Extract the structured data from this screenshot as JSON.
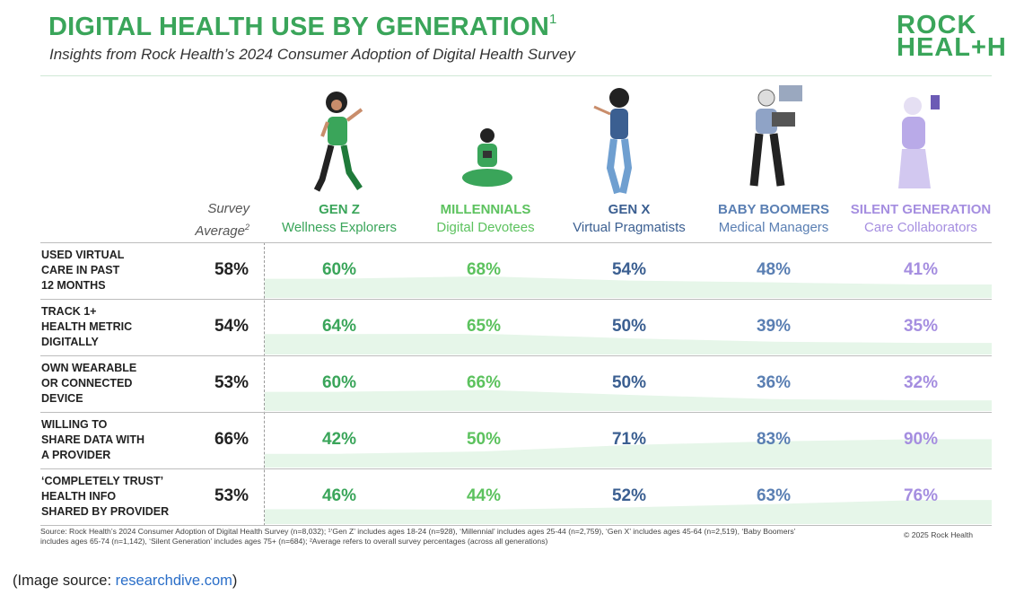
{
  "header": {
    "title": "DIGITAL HEALTH USE BY GENERATION",
    "title_sup": "1",
    "subtitle": "Insights from Rock Health’s 2024 Consumer Adoption of Digital Health Survey",
    "logo_line1": "ROCK",
    "logo_line2": "HEAL+H"
  },
  "columns": {
    "survey_label_1": "Survey",
    "survey_label_2": "Average",
    "survey_sup": "2"
  },
  "chart_data": {
    "type": "table",
    "columns": [
      {
        "name": "GEN Z",
        "descriptor": "Wellness Explorers",
        "color": "#3aa55a"
      },
      {
        "name": "MILLENNIALS",
        "descriptor": "Digital Devotees",
        "color": "#5cc25e"
      },
      {
        "name": "GEN X",
        "descriptor": "Virtual Pragmatists",
        "color": "#3b5f91"
      },
      {
        "name": "BABY BOOMERS",
        "descriptor": "Medical Managers",
        "color": "#5a7fb3"
      },
      {
        "name": "SILENT GENERATION",
        "descriptor": "Care Collaborators",
        "color": "#a58ee0"
      }
    ],
    "rows": [
      {
        "label_lines": [
          "USED VIRTUAL",
          "CARE IN PAST",
          "12 MONTHS"
        ],
        "average": "58%",
        "values": [
          60,
          68,
          54,
          48,
          41
        ]
      },
      {
        "label_lines": [
          "TRACK 1+",
          "HEALTH METRIC",
          "DIGITALLY"
        ],
        "average": "54%",
        "values": [
          64,
          65,
          50,
          39,
          35
        ]
      },
      {
        "label_lines": [
          "OWN WEARABLE",
          "OR CONNECTED",
          "DEVICE"
        ],
        "average": "53%",
        "values": [
          60,
          66,
          50,
          36,
          32
        ]
      },
      {
        "label_lines": [
          "WILLING TO",
          "SHARE DATA WITH",
          "A PROVIDER"
        ],
        "average": "66%",
        "values": [
          42,
          50,
          71,
          83,
          90
        ]
      },
      {
        "label_lines": [
          "‘COMPLETELY TRUST’",
          "HEALTH INFO",
          "SHARED BY PROVIDER"
        ],
        "average": "53%",
        "values": [
          46,
          44,
          52,
          63,
          76
        ]
      }
    ],
    "value_suffix": "%",
    "trend_fill_color": "#e6f6e9"
  },
  "footnote": {
    "line1": "Source: Rock Health’s 2024 Consumer Adoption of Digital Health Survey (n=8,032); ¹‘Gen Z’ includes ages 18-24 (n=928), ‘Millennial’ includes ages 25-44 (n=2,759), ‘Gen X’ includes ages 45-64 (n=2,519), ‘Baby Boomers’",
    "line2": "includes ages 65-74 (n=1,142), ‘Silent Generation’ includes ages 75+ (n=684); ²Average refers to overall survey percentages (across all generations)",
    "copyright": "© 2025 Rock Health"
  },
  "image_source": {
    "prefix": "(Image source: ",
    "link": "researchdive.com",
    "suffix": ")"
  }
}
